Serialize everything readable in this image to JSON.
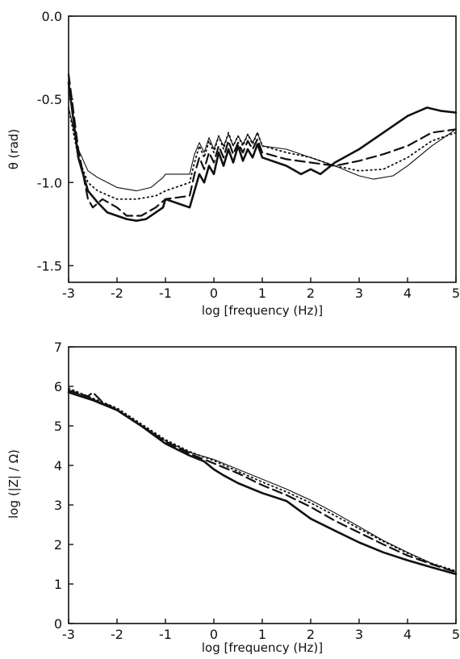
{
  "chart_data": [
    {
      "type": "line",
      "title": "",
      "xlabel": "log [frequency (Hz)]",
      "ylabel": "θ (rad)",
      "xlim": [
        -3,
        5
      ],
      "ylim": [
        -1.6,
        0.0
      ],
      "xticks": [
        -3,
        -2,
        -1,
        0,
        1,
        2,
        3,
        4,
        5
      ],
      "xtick_labels": [
        "-3",
        "-2",
        "-1",
        "0",
        "1",
        "2",
        "3",
        "4",
        "5"
      ],
      "yticks": [
        0.0,
        -0.5,
        -1.0,
        -1.5
      ],
      "ytick_labels": [
        "0.0",
        "-0.5",
        "-1.0",
        "-1.5"
      ],
      "grid": false,
      "legend": "none",
      "series": [
        {
          "style": "thick-solid",
          "x": [
            -3,
            -2.8,
            -2.6,
            -2.4,
            -2.2,
            -2.0,
            -1.8,
            -1.6,
            -1.4,
            -1.2,
            -1.05,
            -1.0,
            -0.5,
            -0.4,
            -0.3,
            -0.2,
            -0.1,
            0.0,
            0.1,
            0.2,
            0.3,
            0.4,
            0.5,
            0.6,
            0.7,
            0.8,
            0.9,
            1.0,
            1.5,
            1.8,
            2.0,
            2.2,
            2.5,
            3.0,
            3.5,
            4.0,
            4.4,
            4.7,
            5.0
          ],
          "y": [
            -0.4,
            -0.85,
            -1.05,
            -1.12,
            -1.18,
            -1.2,
            -1.22,
            -1.23,
            -1.22,
            -1.18,
            -1.15,
            -1.1,
            -1.15,
            -1.05,
            -0.95,
            -1.0,
            -0.9,
            -0.95,
            -0.82,
            -0.9,
            -0.8,
            -0.88,
            -0.78,
            -0.87,
            -0.8,
            -0.85,
            -0.77,
            -0.85,
            -0.9,
            -0.95,
            -0.92,
            -0.95,
            -0.88,
            -0.8,
            -0.7,
            -0.6,
            -0.55,
            -0.57,
            -0.58
          ]
        },
        {
          "style": "dashed",
          "x": [
            -3,
            -2.8,
            -2.6,
            -2.5,
            -2.3,
            -2.0,
            -1.8,
            -1.5,
            -1.2,
            -1.0,
            -0.5,
            -0.4,
            -0.3,
            -0.2,
            -0.1,
            0.0,
            0.1,
            0.2,
            0.3,
            0.4,
            0.5,
            0.6,
            0.7,
            0.8,
            0.9,
            1.0,
            1.5,
            2.0,
            2.5,
            3.0,
            3.5,
            4.0,
            4.5,
            5.0
          ],
          "y": [
            -0.35,
            -0.8,
            -1.1,
            -1.15,
            -1.1,
            -1.15,
            -1.2,
            -1.2,
            -1.15,
            -1.1,
            -1.08,
            -0.95,
            -0.85,
            -0.92,
            -0.82,
            -0.88,
            -0.78,
            -0.85,
            -0.75,
            -0.83,
            -0.76,
            -0.82,
            -0.75,
            -0.8,
            -0.74,
            -0.82,
            -0.86,
            -0.88,
            -0.9,
            -0.87,
            -0.83,
            -0.78,
            -0.7,
            -0.68
          ]
        },
        {
          "style": "dotted",
          "x": [
            -3,
            -2.8,
            -2.6,
            -2.4,
            -2.0,
            -1.6,
            -1.2,
            -1.0,
            -0.5,
            -0.4,
            -0.3,
            -0.2,
            -0.1,
            0.0,
            0.1,
            0.2,
            0.3,
            0.4,
            0.5,
            0.6,
            0.7,
            0.8,
            0.9,
            1.0,
            1.5,
            2.0,
            2.5,
            3.0,
            3.5,
            4.0,
            4.5,
            5.0
          ],
          "y": [
            -0.55,
            -0.85,
            -1.0,
            -1.05,
            -1.1,
            -1.1,
            -1.08,
            -1.05,
            -1.0,
            -0.88,
            -0.78,
            -0.85,
            -0.75,
            -0.82,
            -0.72,
            -0.8,
            -0.7,
            -0.78,
            -0.72,
            -0.78,
            -0.71,
            -0.77,
            -0.7,
            -0.78,
            -0.82,
            -0.85,
            -0.9,
            -0.93,
            -0.92,
            -0.85,
            -0.75,
            -0.7
          ]
        },
        {
          "style": "thin-solid",
          "x": [
            -3,
            -2.8,
            -2.6,
            -2.4,
            -2.0,
            -1.6,
            -1.3,
            -1.05,
            -1.0,
            -0.5,
            -0.4,
            -0.3,
            -0.2,
            -0.1,
            0.0,
            0.1,
            0.2,
            0.3,
            0.4,
            0.5,
            0.6,
            0.7,
            0.8,
            0.9,
            1.0,
            1.5,
            2.0,
            2.5,
            3.0,
            3.3,
            3.7,
            4.0,
            4.5,
            5.0
          ],
          "y": [
            -0.55,
            -0.8,
            -0.93,
            -0.97,
            -1.03,
            -1.05,
            -1.03,
            -0.97,
            -0.95,
            -0.95,
            -0.83,
            -0.76,
            -0.82,
            -0.73,
            -0.8,
            -0.72,
            -0.78,
            -0.71,
            -0.78,
            -0.72,
            -0.77,
            -0.71,
            -0.76,
            -0.7,
            -0.78,
            -0.8,
            -0.85,
            -0.9,
            -0.96,
            -0.98,
            -0.96,
            -0.9,
            -0.78,
            -0.68
          ]
        }
      ]
    },
    {
      "type": "line",
      "title": "",
      "xlabel": "log [frequency (Hz)]",
      "ylabel": "log (|Z| / Ω)",
      "xlim": [
        -3,
        5
      ],
      "ylim": [
        0,
        7
      ],
      "xticks": [
        -3,
        -2,
        -1,
        0,
        1,
        2,
        3,
        4,
        5
      ],
      "xtick_labels": [
        "-3",
        "-2",
        "-1",
        "0",
        "1",
        "2",
        "3",
        "4",
        "5"
      ],
      "yticks": [
        0,
        1,
        2,
        3,
        4,
        5,
        6,
        7
      ],
      "ytick_labels": [
        "0",
        "1",
        "2",
        "3",
        "4",
        "5",
        "6",
        "7"
      ],
      "grid": false,
      "legend": "none",
      "series": [
        {
          "style": "thick-solid",
          "x": [
            -3,
            -2.5,
            -2.0,
            -1.5,
            -1.0,
            -0.5,
            -0.2,
            0.0,
            0.2,
            0.5,
            1.0,
            1.5,
            2.0,
            2.5,
            3.0,
            3.5,
            4.0,
            4.5,
            5.0
          ],
          "y": [
            5.85,
            5.65,
            5.4,
            5.0,
            4.55,
            4.25,
            4.1,
            3.9,
            3.75,
            3.55,
            3.3,
            3.1,
            2.65,
            2.35,
            2.05,
            1.8,
            1.6,
            1.42,
            1.25
          ]
        },
        {
          "style": "dashed",
          "x": [
            -3,
            -2.6,
            -2.5,
            -2.3,
            -2.0,
            -1.5,
            -1.0,
            -0.5,
            0.0,
            0.5,
            1.0,
            1.5,
            2.0,
            2.5,
            3.0,
            3.5,
            4.0,
            4.5,
            5.0
          ],
          "y": [
            5.9,
            5.75,
            5.85,
            5.6,
            5.4,
            5.0,
            4.6,
            4.3,
            4.05,
            3.8,
            3.5,
            3.25,
            2.95,
            2.6,
            2.3,
            2.0,
            1.72,
            1.5,
            1.3
          ]
        },
        {
          "style": "dotted",
          "x": [
            -3,
            -2.5,
            -2.0,
            -1.5,
            -1.0,
            -0.5,
            0.0,
            0.5,
            1.0,
            1.5,
            2.0,
            2.5,
            3.0,
            3.5,
            4.0,
            4.5,
            5.0
          ],
          "y": [
            5.95,
            5.7,
            5.45,
            5.05,
            4.65,
            4.35,
            4.12,
            3.85,
            3.58,
            3.33,
            3.05,
            2.73,
            2.4,
            2.08,
            1.78,
            1.52,
            1.33
          ]
        },
        {
          "style": "thin-solid",
          "x": [
            -3,
            -2.5,
            -2.0,
            -1.5,
            -1.0,
            -0.5,
            0.0,
            0.5,
            1.0,
            1.5,
            2.0,
            2.5,
            3.0,
            3.5,
            4.0,
            4.5,
            5.0
          ],
          "y": [
            5.9,
            5.68,
            5.42,
            5.02,
            4.62,
            4.33,
            4.15,
            3.9,
            3.65,
            3.4,
            3.12,
            2.8,
            2.45,
            2.1,
            1.8,
            1.52,
            1.3
          ]
        }
      ]
    }
  ]
}
